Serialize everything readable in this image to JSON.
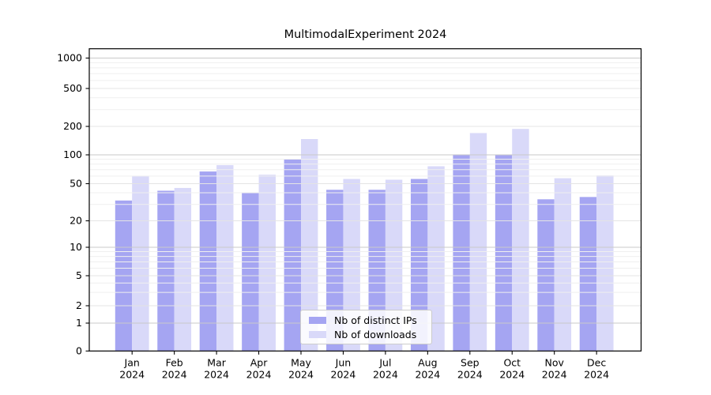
{
  "title": "MultimodalExperiment 2024",
  "chart_data": {
    "type": "bar",
    "categories": [
      "Jan",
      "Feb",
      "Mar",
      "Apr",
      "May",
      "Jun",
      "Jul",
      "Aug",
      "Sep",
      "Oct",
      "Nov",
      "Dec"
    ],
    "category_year_label": "2024",
    "series": [
      {
        "name": "Nb of distinct IPs",
        "color": "#a5a5f2",
        "values": [
          33,
          42,
          67,
          40,
          90,
          43,
          43,
          56,
          101,
          99,
          34,
          36
        ]
      },
      {
        "name": "Nb of downloads",
        "color": "#d9d9f9",
        "values": [
          60,
          45,
          78,
          62,
          147,
          56,
          55,
          76,
          170,
          188,
          57,
          61
        ]
      }
    ],
    "yticks": [
      0,
      1,
      2,
      5,
      10,
      20,
      50,
      100,
      200,
      500,
      1000
    ],
    "ylim": [
      0,
      1000
    ],
    "yscale": "symlog",
    "grid": "horizontal",
    "legend_position": "lower-center",
    "colors": {
      "major_gridline": "#c9c9c9",
      "sub_gridline": "#e4e4e4",
      "minor_gridline": "#efefef",
      "axis": "#000000"
    }
  }
}
